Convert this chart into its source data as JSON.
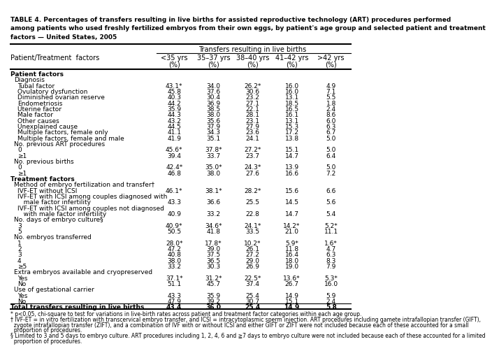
{
  "title_line1": "TABLE 4. Percentages of transfers resulting in live births for assisted reproductive technology (ART) procedures performed",
  "title_line2": "among patients who used freshly fertilized embryos from their own eggs, by patient's age group and selected patient and treatment",
  "title_line3": "factors — United States, 2005",
  "col_header_main": "Transfers resulting in live births",
  "col_headers": [
    "<35 yrs\n(%)",
    "35–37 yrs\n(%)",
    "38–40 yrs\n(%)",
    "41–42 yrs\n(%)",
    ">42 yrs\n(%)"
  ],
  "row_header_col": "Patient/Treatment  factors",
  "rows": [
    {
      "label": "Patient factors",
      "level": 0,
      "bold": true,
      "values": [
        null,
        null,
        null,
        null,
        null
      ]
    },
    {
      "label": "Diagnosis",
      "level": 1,
      "bold": false,
      "values": [
        null,
        null,
        null,
        null,
        null
      ]
    },
    {
      "label": "Tubal factor",
      "level": 2,
      "bold": false,
      "values": [
        "43.1*",
        "34.0",
        "26.2*",
        "16.0",
        "4.9"
      ]
    },
    {
      "label": "Ovulatory dysfunction",
      "level": 2,
      "bold": false,
      "values": [
        "45.8",
        "37.6",
        "30.6",
        "16.0",
        "7.1"
      ]
    },
    {
      "label": "Diminished ovarian reserve",
      "level": 2,
      "bold": false,
      "values": [
        "40.3",
        "30.4",
        "23.2",
        "13.1",
        "5.5"
      ]
    },
    {
      "label": "Endometriosis",
      "level": 2,
      "bold": false,
      "values": [
        "44.2",
        "36.9",
        "27.1",
        "18.5",
        "1.8"
      ]
    },
    {
      "label": "Uterine factor",
      "level": 2,
      "bold": false,
      "values": [
        "35.9",
        "38.5",
        "22.1",
        "16.5",
        "2.4"
      ]
    },
    {
      "label": "Male factor",
      "level": 2,
      "bold": false,
      "values": [
        "44.3",
        "38.0",
        "28.1",
        "16.1",
        "8.6"
      ]
    },
    {
      "label": "Other causes",
      "level": 2,
      "bold": false,
      "values": [
        "43.2",
        "35.6",
        "23.1",
        "13.1",
        "6.0"
      ]
    },
    {
      "label": "Unexplained cause",
      "level": 2,
      "bold": false,
      "values": [
        "44.5",
        "37.9",
        "27.9",
        "15.3",
        "6.3"
      ]
    },
    {
      "label": "Multiple factors, female only",
      "level": 2,
      "bold": false,
      "values": [
        "41.1",
        "34.3",
        "23.6",
        "17.2",
        "6.7"
      ]
    },
    {
      "label": "Multiple factors, female and male",
      "level": 2,
      "bold": false,
      "values": [
        "41.9",
        "35.1",
        "24.1",
        "13.8",
        "5.0"
      ]
    },
    {
      "label": "No. previous ART procedures",
      "level": 1,
      "bold": false,
      "values": [
        null,
        null,
        null,
        null,
        null
      ]
    },
    {
      "label": "0",
      "level": 2,
      "bold": false,
      "values": [
        "45.6*",
        "37.8*",
        "27.2*",
        "15.1",
        "5.0"
      ]
    },
    {
      "label": "≥1",
      "level": 2,
      "bold": false,
      "values": [
        "39.4",
        "33.7",
        "23.7",
        "14.7",
        "6.4"
      ]
    },
    {
      "label": "No. previous births",
      "level": 1,
      "bold": false,
      "values": [
        null,
        null,
        null,
        null,
        null
      ]
    },
    {
      "label": "0",
      "level": 2,
      "bold": false,
      "values": [
        "42.4*",
        "35.0*",
        "24.3*",
        "13.9",
        "5.0"
      ]
    },
    {
      "label": "≥1",
      "level": 2,
      "bold": false,
      "values": [
        "46.8",
        "38.0",
        "27.6",
        "16.6",
        "7.2"
      ]
    },
    {
      "label": "Treatment factors",
      "level": 0,
      "bold": true,
      "values": [
        null,
        null,
        null,
        null,
        null
      ]
    },
    {
      "label": "Method of embryo fertilization and transfer†",
      "level": 1,
      "bold": false,
      "values": [
        null,
        null,
        null,
        null,
        null
      ]
    },
    {
      "label": "IVF-ET without ICSI",
      "level": 2,
      "bold": false,
      "values": [
        "46.1*",
        "38.1*",
        "28.2*",
        "15.6",
        "6.6"
      ]
    },
    {
      "label": "IVF-ET with ICSI among couples diagnosed with",
      "level": 2,
      "bold": false,
      "values": [
        null,
        null,
        null,
        null,
        null
      ]
    },
    {
      "label": "   male factor infertility",
      "level": 2,
      "bold": false,
      "values": [
        "43.3",
        "36.6",
        "25.5",
        "14.5",
        "5.6"
      ]
    },
    {
      "label": "IVF-ET with ICSI among couples not diagnosed",
      "level": 2,
      "bold": false,
      "values": [
        null,
        null,
        null,
        null,
        null
      ]
    },
    {
      "label": "   with male factor infertility",
      "level": 2,
      "bold": false,
      "values": [
        "40.9",
        "33.2",
        "22.8",
        "14.7",
        "5.4"
      ]
    },
    {
      "label": "No. days of embryo culture§",
      "level": 1,
      "bold": false,
      "values": [
        null,
        null,
        null,
        null,
        null
      ]
    },
    {
      "label": "3",
      "level": 2,
      "bold": false,
      "values": [
        "40.9*",
        "34.6*",
        "24.1*",
        "14.2*",
        "5.2*"
      ]
    },
    {
      "label": "5",
      "level": 2,
      "bold": false,
      "values": [
        "50.5",
        "41.8",
        "33.5",
        "21.0",
        "11.1"
      ]
    },
    {
      "label": "No. embryos transferred",
      "level": 1,
      "bold": false,
      "values": [
        null,
        null,
        null,
        null,
        null
      ]
    },
    {
      "label": "1",
      "level": 2,
      "bold": false,
      "values": [
        "28.0*",
        "17.8*",
        "10.2*",
        "5.9*",
        "1.6*"
      ]
    },
    {
      "label": "2",
      "level": 2,
      "bold": false,
      "values": [
        "47.2",
        "39.0",
        "26.1",
        "11.8",
        "4.7"
      ]
    },
    {
      "label": "3",
      "level": 2,
      "bold": false,
      "values": [
        "40.8",
        "37.5",
        "27.2",
        "16.4",
        "6.3"
      ]
    },
    {
      "label": "4",
      "level": 2,
      "bold": false,
      "values": [
        "38.0",
        "36.5",
        "29.0",
        "18.0",
        "8.3"
      ]
    },
    {
      "label": "≥5",
      "level": 2,
      "bold": false,
      "values": [
        "33.2",
        "30.3",
        "26.9",
        "19.0",
        "7.9"
      ]
    },
    {
      "label": "Extra embryos available and cryopreserved",
      "level": 1,
      "bold": false,
      "values": [
        null,
        null,
        null,
        null,
        null
      ]
    },
    {
      "label": "Yes",
      "level": 2,
      "bold": false,
      "values": [
        "37.1*",
        "31.2*",
        "22.5*",
        "13.6*",
        "5.3*"
      ]
    },
    {
      "label": "No",
      "level": 2,
      "bold": false,
      "values": [
        "51.1",
        "45.7",
        "37.4",
        "26.7",
        "16.0"
      ]
    },
    {
      "label": "Use of gestational carrier",
      "level": 1,
      "bold": false,
      "values": [
        null,
        null,
        null,
        null,
        null
      ]
    },
    {
      "label": "Yes",
      "level": 2,
      "bold": false,
      "values": [
        "43.3",
        "35.9",
        "25.4",
        "14.9",
        "5.9"
      ]
    },
    {
      "label": "No",
      "level": 2,
      "bold": false,
      "values": [
        "47.9",
        "39.2",
        "30.7",
        "15.1",
        "2.4"
      ]
    },
    {
      "label": "Total transfers resulting in live births",
      "level": 0,
      "bold": true,
      "values": [
        "43.4",
        "36.0",
        "25.4",
        "14.9",
        "5.8"
      ]
    }
  ],
  "footnotes": [
    "* p<0.05, chi-square to test for variations in live-birth rates across patient and treatment factor categories within each age group.",
    "† IVF-ET = in vitro fertilization with transcervical embryo transfer, and ICSI = intracytoplasmic sperm injection. ART procedures including gamete intrafallopian transfer (GIFT),",
    "  zygote intrafallopian transfer (ZIFT), and a combination of IVF with or without ICSI and either GIFT or ZIFT were not included because each of these accounted for a small",
    "  proportion of procedures.",
    "§ Limited to 3 and 5 days to embryo culture. ART procedures including 1, 2, 4, 6 and ≧7 days to embryo culture were not included because each of these accounted for a limited",
    "  proportion of procedures."
  ],
  "bg_color": "#ffffff",
  "text_color": "#000000",
  "title_fontsize": 6.5,
  "header_fontsize": 7.0,
  "body_fontsize": 6.5,
  "footnote_fontsize": 5.5
}
